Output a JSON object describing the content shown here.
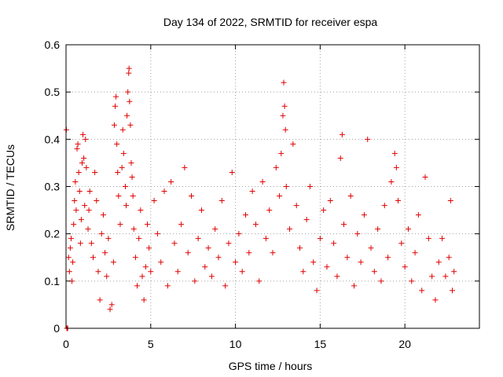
{
  "chart_data": {
    "type": "scatter",
    "title": "Day 134 of 2022, SRMTID for receiver espa",
    "xlabel": "GPS time / hours",
    "ylabel": "SRMTID / TECUs",
    "xlim": [
      0,
      24.4
    ],
    "ylim": [
      0,
      0.6
    ],
    "xticks": [
      0,
      5,
      10,
      15,
      20
    ],
    "yticks": [
      0,
      0.1,
      0.2,
      0.3,
      0.4,
      0.5,
      0.6
    ],
    "xtick_labels": [
      "0",
      "5",
      "10",
      "15",
      "20"
    ],
    "ytick_labels": [
      "0",
      "0.1",
      "0.2",
      "0.3",
      "0.4",
      "0.5",
      "0.6"
    ],
    "grid": true,
    "marker": "+",
    "color": "#e00000",
    "series": [
      {
        "name": "SRMTID",
        "points": [
          [
            0.02,
            0.42
          ],
          [
            0.05,
            0.0
          ],
          [
            0.08,
            0.0
          ],
          [
            0.1,
            0.0
          ],
          [
            0.15,
            0.15
          ],
          [
            0.2,
            0.12
          ],
          [
            0.25,
            0.17
          ],
          [
            0.3,
            0.19
          ],
          [
            0.35,
            0.1
          ],
          [
            0.4,
            0.14
          ],
          [
            0.45,
            0.22
          ],
          [
            0.5,
            0.27
          ],
          [
            0.55,
            0.31
          ],
          [
            0.6,
            0.25
          ],
          [
            0.65,
            0.38
          ],
          [
            0.7,
            0.39
          ],
          [
            0.75,
            0.33
          ],
          [
            0.8,
            0.29
          ],
          [
            0.85,
            0.18
          ],
          [
            0.9,
            0.23
          ],
          [
            0.95,
            0.35
          ],
          [
            1.0,
            0.41
          ],
          [
            1.05,
            0.36
          ],
          [
            1.1,
            0.26
          ],
          [
            1.15,
            0.4
          ],
          [
            1.2,
            0.34
          ],
          [
            1.3,
            0.21
          ],
          [
            1.35,
            0.25
          ],
          [
            1.4,
            0.29
          ],
          [
            1.5,
            0.18
          ],
          [
            1.6,
            0.15
          ],
          [
            1.7,
            0.33
          ],
          [
            1.8,
            0.27
          ],
          [
            1.9,
            0.12
          ],
          [
            2.0,
            0.06
          ],
          [
            2.1,
            0.2
          ],
          [
            2.2,
            0.24
          ],
          [
            2.3,
            0.16
          ],
          [
            2.4,
            0.11
          ],
          [
            2.5,
            0.19
          ],
          [
            2.6,
            0.04
          ],
          [
            2.7,
            0.05
          ],
          [
            2.8,
            0.14
          ],
          [
            2.85,
            0.43
          ],
          [
            2.9,
            0.47
          ],
          [
            2.95,
            0.49
          ],
          [
            3.0,
            0.39
          ],
          [
            3.05,
            0.33
          ],
          [
            3.1,
            0.28
          ],
          [
            3.2,
            0.22
          ],
          [
            3.3,
            0.34
          ],
          [
            3.35,
            0.42
          ],
          [
            3.4,
            0.37
          ],
          [
            3.5,
            0.3
          ],
          [
            3.55,
            0.26
          ],
          [
            3.6,
            0.45
          ],
          [
            3.65,
            0.5
          ],
          [
            3.7,
            0.54
          ],
          [
            3.72,
            0.55
          ],
          [
            3.75,
            0.48
          ],
          [
            3.8,
            0.43
          ],
          [
            3.85,
            0.35
          ],
          [
            3.9,
            0.32
          ],
          [
            3.95,
            0.28
          ],
          [
            4.0,
            0.21
          ],
          [
            4.1,
            0.15
          ],
          [
            4.2,
            0.09
          ],
          [
            4.3,
            0.19
          ],
          [
            4.4,
            0.25
          ],
          [
            4.5,
            0.11
          ],
          [
            4.6,
            0.06
          ],
          [
            4.7,
            0.13
          ],
          [
            4.8,
            0.22
          ],
          [
            4.9,
            0.17
          ],
          [
            5.0,
            0.12
          ],
          [
            5.2,
            0.27
          ],
          [
            5.4,
            0.2
          ],
          [
            5.6,
            0.14
          ],
          [
            5.8,
            0.29
          ],
          [
            6.0,
            0.09
          ],
          [
            6.2,
            0.31
          ],
          [
            6.4,
            0.18
          ],
          [
            6.6,
            0.12
          ],
          [
            6.8,
            0.22
          ],
          [
            7.0,
            0.34
          ],
          [
            7.2,
            0.16
          ],
          [
            7.4,
            0.28
          ],
          [
            7.6,
            0.1
          ],
          [
            7.8,
            0.19
          ],
          [
            8.0,
            0.25
          ],
          [
            8.2,
            0.13
          ],
          [
            8.4,
            0.17
          ],
          [
            8.6,
            0.11
          ],
          [
            8.8,
            0.21
          ],
          [
            9.0,
            0.15
          ],
          [
            9.2,
            0.27
          ],
          [
            9.4,
            0.09
          ],
          [
            9.6,
            0.18
          ],
          [
            9.8,
            0.33
          ],
          [
            10.0,
            0.14
          ],
          [
            10.2,
            0.2
          ],
          [
            10.4,
            0.12
          ],
          [
            10.6,
            0.24
          ],
          [
            10.8,
            0.16
          ],
          [
            11.0,
            0.29
          ],
          [
            11.2,
            0.22
          ],
          [
            11.4,
            0.1
          ],
          [
            11.6,
            0.31
          ],
          [
            11.8,
            0.19
          ],
          [
            12.0,
            0.25
          ],
          [
            12.2,
            0.16
          ],
          [
            12.4,
            0.34
          ],
          [
            12.6,
            0.28
          ],
          [
            12.7,
            0.37
          ],
          [
            12.8,
            0.45
          ],
          [
            12.85,
            0.52
          ],
          [
            12.9,
            0.47
          ],
          [
            12.95,
            0.42
          ],
          [
            13.0,
            0.3
          ],
          [
            13.2,
            0.21
          ],
          [
            13.4,
            0.39
          ],
          [
            13.6,
            0.26
          ],
          [
            13.8,
            0.17
          ],
          [
            14.0,
            0.12
          ],
          [
            14.2,
            0.23
          ],
          [
            14.4,
            0.3
          ],
          [
            14.6,
            0.14
          ],
          [
            14.8,
            0.08
          ],
          [
            15.0,
            0.19
          ],
          [
            15.2,
            0.25
          ],
          [
            15.4,
            0.13
          ],
          [
            15.6,
            0.27
          ],
          [
            15.8,
            0.18
          ],
          [
            16.0,
            0.11
          ],
          [
            16.2,
            0.36
          ],
          [
            16.3,
            0.41
          ],
          [
            16.4,
            0.22
          ],
          [
            16.6,
            0.15
          ],
          [
            16.8,
            0.28
          ],
          [
            17.0,
            0.09
          ],
          [
            17.2,
            0.2
          ],
          [
            17.4,
            0.14
          ],
          [
            17.6,
            0.24
          ],
          [
            17.8,
            0.4
          ],
          [
            18.0,
            0.17
          ],
          [
            18.2,
            0.12
          ],
          [
            18.4,
            0.21
          ],
          [
            18.6,
            0.1
          ],
          [
            18.8,
            0.26
          ],
          [
            19.0,
            0.15
          ],
          [
            19.2,
            0.31
          ],
          [
            19.4,
            0.37
          ],
          [
            19.5,
            0.34
          ],
          [
            19.6,
            0.27
          ],
          [
            19.8,
            0.18
          ],
          [
            20.0,
            0.13
          ],
          [
            20.2,
            0.21
          ],
          [
            20.4,
            0.1
          ],
          [
            20.6,
            0.16
          ],
          [
            20.8,
            0.24
          ],
          [
            21.0,
            0.08
          ],
          [
            21.2,
            0.32
          ],
          [
            21.4,
            0.19
          ],
          [
            21.6,
            0.11
          ],
          [
            21.8,
            0.06
          ],
          [
            22.0,
            0.14
          ],
          [
            22.2,
            0.19
          ],
          [
            22.4,
            0.11
          ],
          [
            22.6,
            0.15
          ],
          [
            22.7,
            0.27
          ],
          [
            22.8,
            0.08
          ],
          [
            22.9,
            0.12
          ]
        ]
      }
    ]
  }
}
